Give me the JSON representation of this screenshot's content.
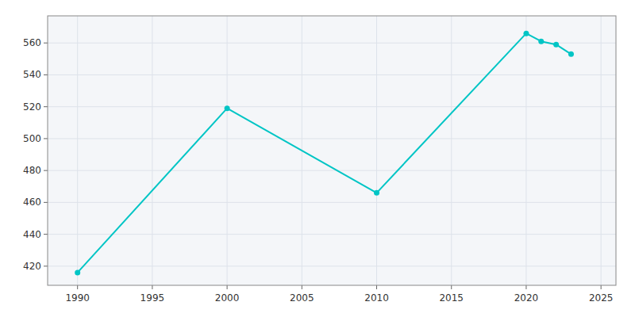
{
  "chart_data": {
    "type": "line",
    "x": [
      1990,
      2000,
      2010,
      2020,
      2021,
      2022,
      2023
    ],
    "values": [
      416,
      519,
      466,
      566,
      561,
      559,
      553
    ],
    "color": "#00C5C5",
    "marker": "circle",
    "xlim": [
      1988,
      2026
    ],
    "ylim": [
      408,
      577
    ],
    "xticks": [
      1990,
      1995,
      2000,
      2005,
      2010,
      2015,
      2020,
      2025
    ],
    "yticks": [
      420,
      440,
      460,
      480,
      500,
      520,
      540,
      560
    ],
    "grid": true
  }
}
